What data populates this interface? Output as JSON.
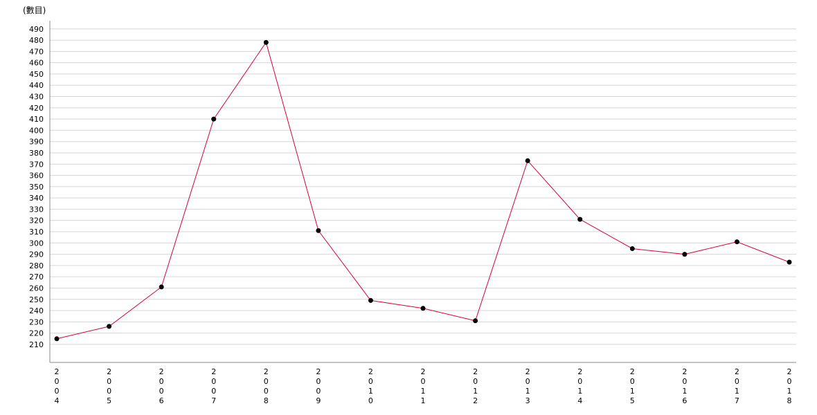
{
  "chart_data": {
    "type": "line",
    "title": "",
    "unit_label": "(數目)",
    "xlabel": "",
    "ylabel": "",
    "x": [
      "2004",
      "2005",
      "2006",
      "2007",
      "2008",
      "2009",
      "2010",
      "2011",
      "2012",
      "2013",
      "2014",
      "2015",
      "2016",
      "2017",
      "2018"
    ],
    "series": [
      {
        "name": "",
        "values": [
          215,
          226,
          261,
          410,
          478,
          311,
          249,
          242,
          231,
          373,
          321,
          295,
          290,
          301,
          283
        ]
      }
    ],
    "yticks": [
      210,
      220,
      230,
      240,
      250,
      260,
      270,
      280,
      290,
      300,
      310,
      320,
      330,
      340,
      350,
      360,
      370,
      380,
      390,
      400,
      410,
      420,
      430,
      440,
      450,
      460,
      470,
      480,
      490
    ],
    "ylim": [
      194,
      496
    ],
    "grid": true,
    "legend": "none",
    "colors": {
      "line": "#d6003a",
      "marker": "#000000",
      "grid": "#d6d6d6",
      "axis": "#888888"
    }
  }
}
